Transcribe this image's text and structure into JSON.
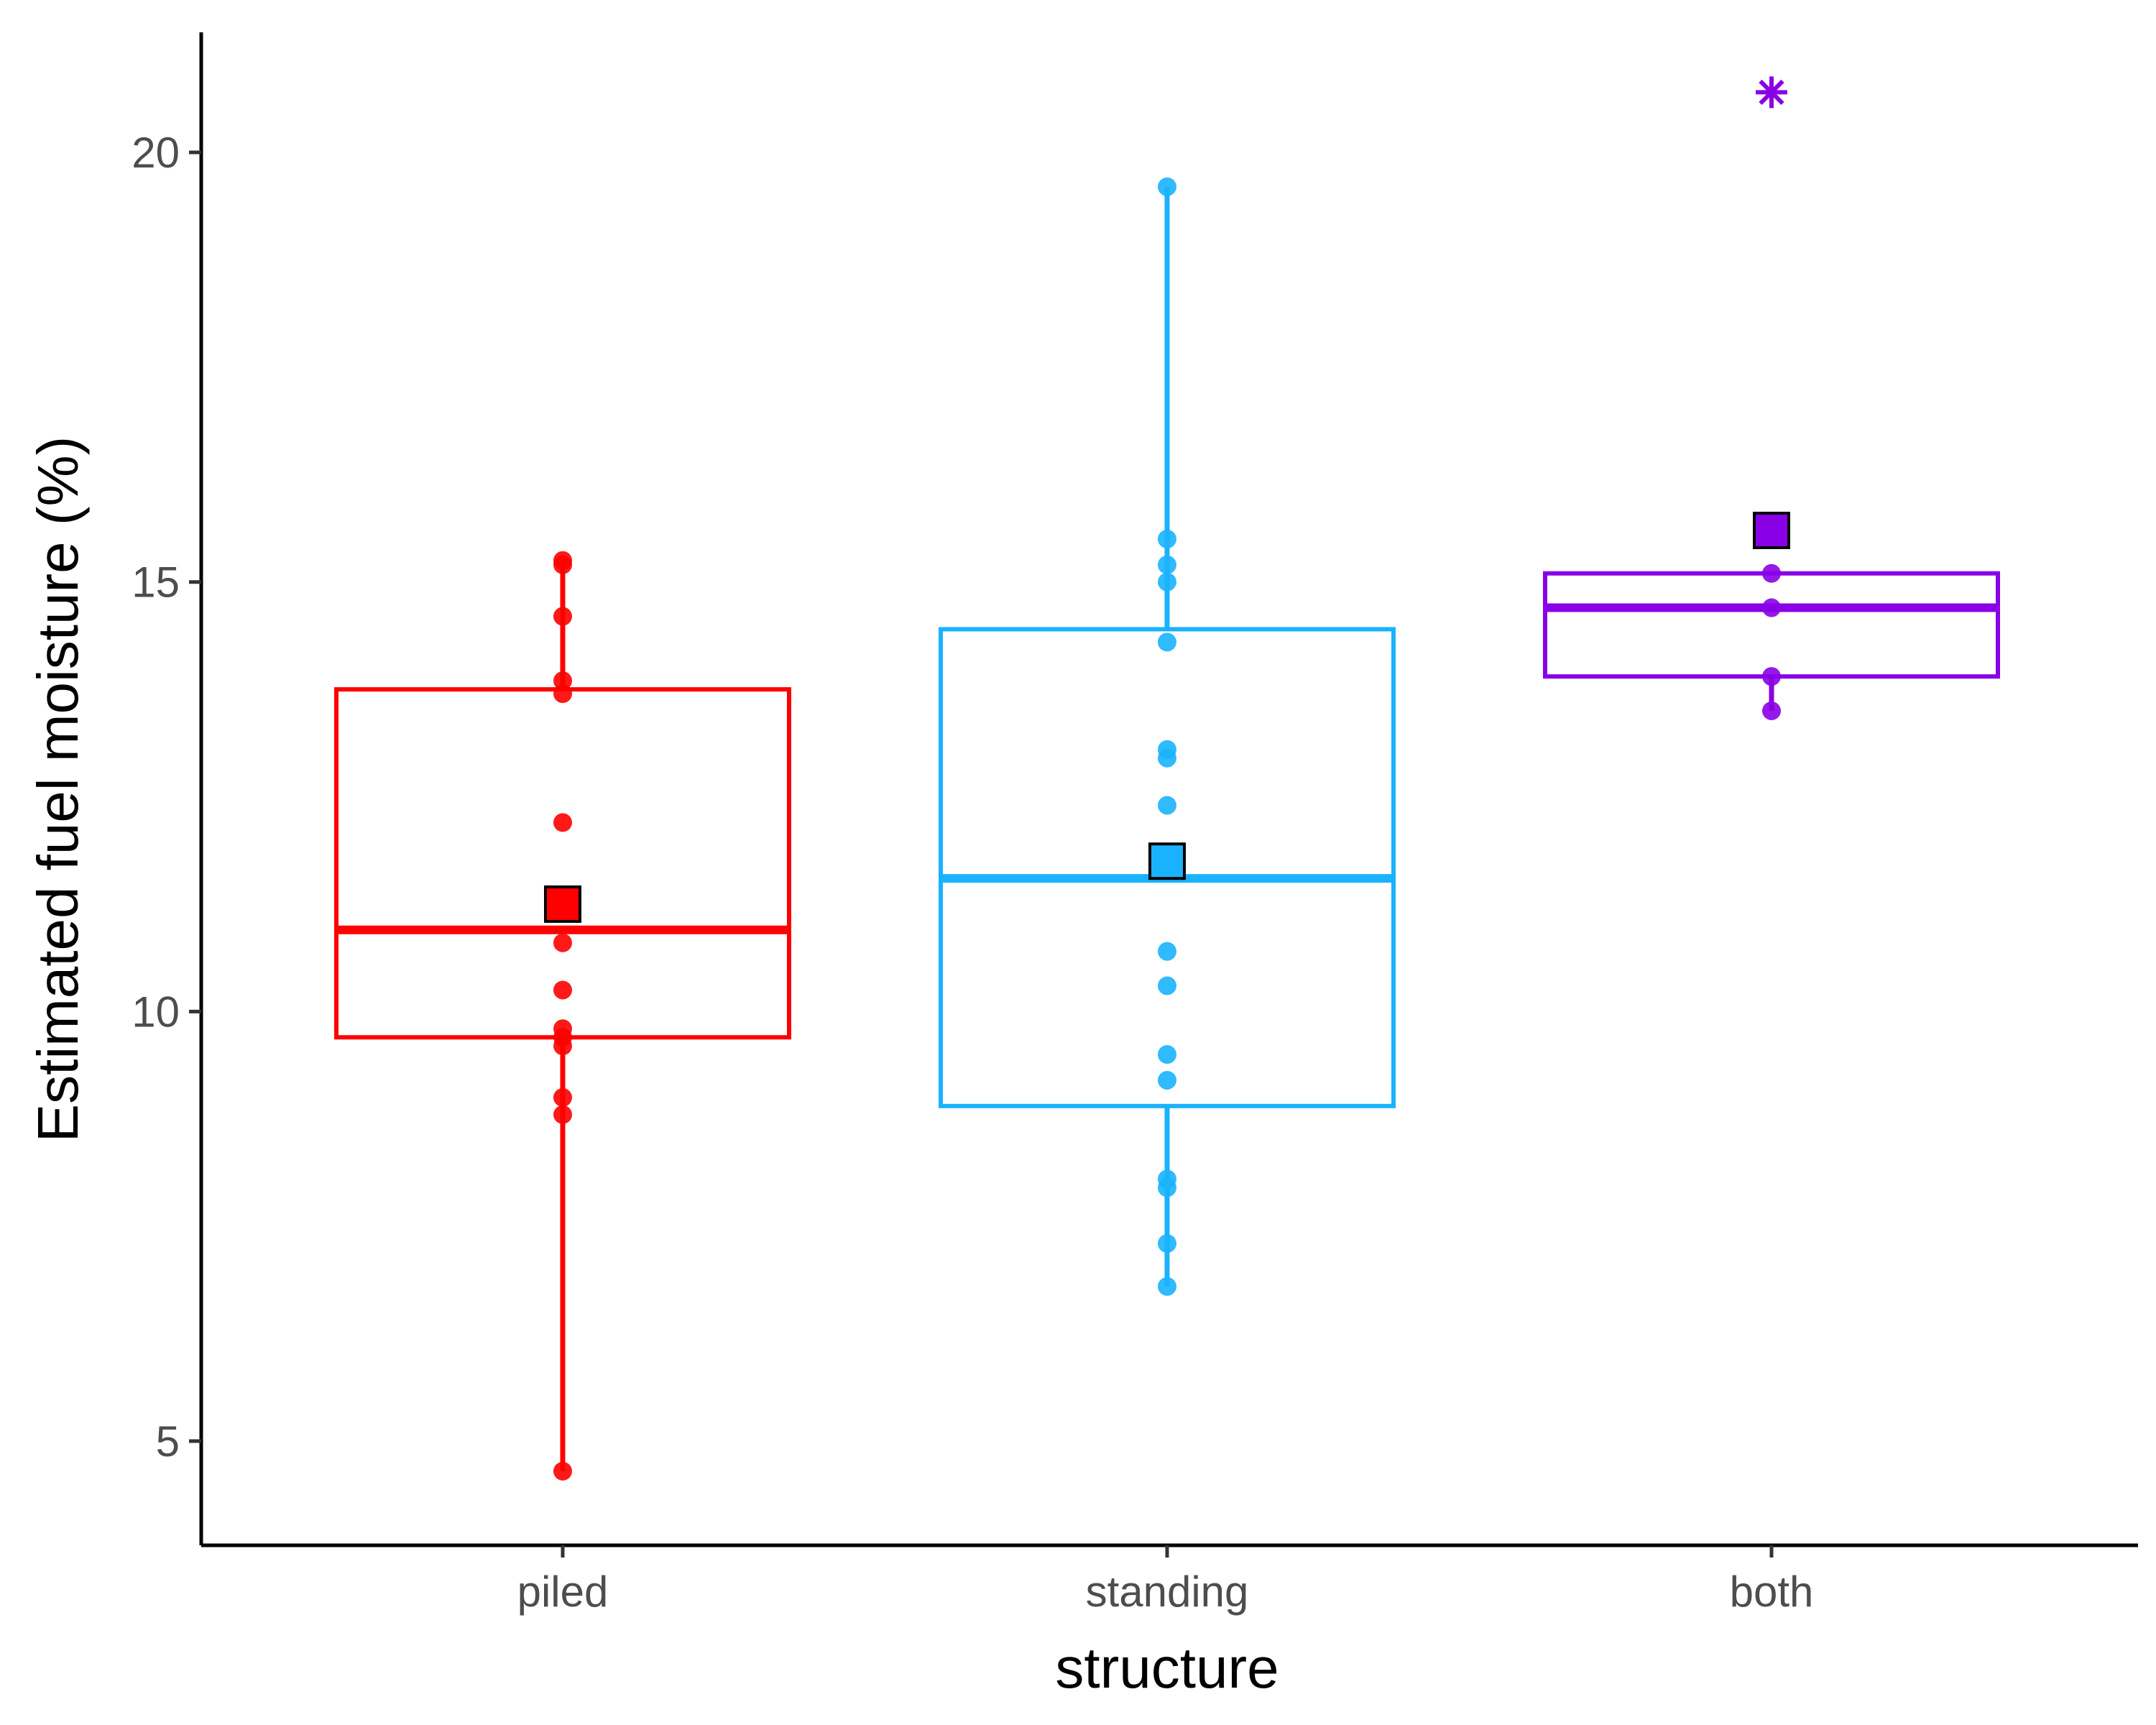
{
  "chart_data": {
    "type": "box",
    "xlabel": "structure",
    "ylabel": "Estimated fuel moisture (%)",
    "categories": [
      "piled",
      "standing",
      "both"
    ],
    "colors": [
      "#ff0000",
      "#1ab2ff",
      "#8a00e6"
    ],
    "y_ticks": [
      5,
      10,
      15,
      20
    ],
    "ylim": [
      3.85,
      21.6
    ],
    "grid": false,
    "legend": "none",
    "groups": [
      {
        "category": "piled",
        "whisker_low": 4.65,
        "q1": 9.7,
        "median": 10.95,
        "q3": 13.75,
        "whisker_high": 15.25,
        "mean": 11.25,
        "points": [
          4.65,
          8.8,
          9.0,
          9.6,
          9.7,
          9.8,
          10.25,
          10.8,
          12.2,
          13.7,
          13.85,
          14.6,
          15.2,
          15.25
        ],
        "outliers": []
      },
      {
        "category": "standing",
        "whisker_low": 6.8,
        "q1": 8.9,
        "median": 11.55,
        "q3": 14.45,
        "whisker_high": 19.6,
        "mean": 11.75,
        "points": [
          6.8,
          7.3,
          7.95,
          8.05,
          9.2,
          9.5,
          10.3,
          10.7,
          12.4,
          12.95,
          13.05,
          14.3,
          15.0,
          15.2,
          15.5,
          19.6
        ],
        "outliers": []
      },
      {
        "category": "both",
        "whisker_low": 13.5,
        "q1": 13.9,
        "median": 14.7,
        "q3": 15.1,
        "whisker_high": 15.1,
        "mean": 15.6,
        "points": [
          13.5,
          13.9,
          14.7,
          15.1
        ],
        "outliers": [
          20.7
        ]
      }
    ]
  }
}
